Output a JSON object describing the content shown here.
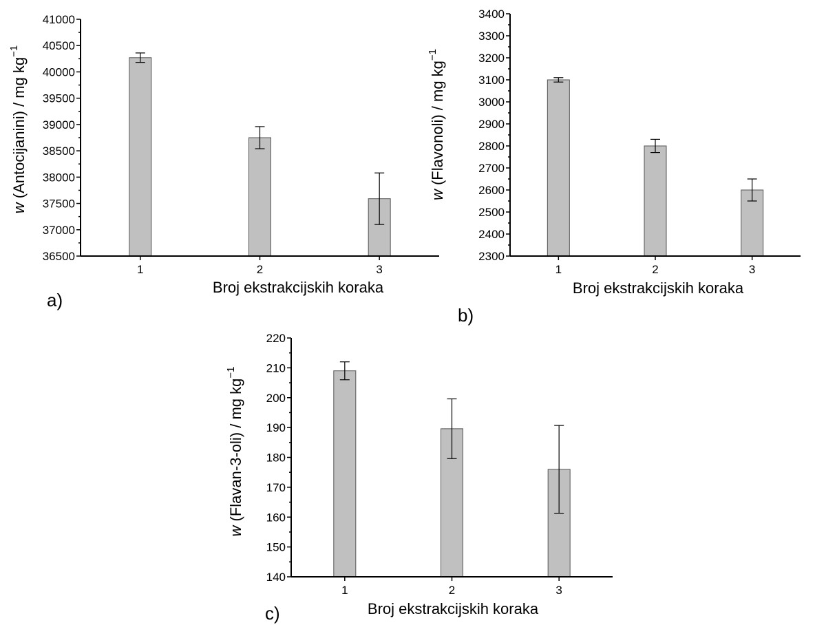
{
  "chart_data": [
    {
      "type": "bar",
      "panel_label": "a)",
      "categories": [
        "1",
        "2",
        "3"
      ],
      "values": [
        40270,
        38750,
        37590
      ],
      "errors": [
        90,
        210,
        490
      ],
      "xlabel": "Broj ekstrakcijskih koraka",
      "ylabel_prefix": "w",
      "ylabel_rest": " (Antocijanini) / mg kg",
      "ylabel_sup": "−1",
      "ylim": [
        36500,
        41000
      ],
      "yticks": [
        36500,
        37000,
        37500,
        38000,
        38500,
        39000,
        39500,
        40000,
        40500,
        41000
      ],
      "bar_color": "#c0c0c0"
    },
    {
      "type": "bar",
      "panel_label": "b)",
      "categories": [
        "1",
        "2",
        "3"
      ],
      "values": [
        3100,
        2800,
        2600
      ],
      "errors": [
        10,
        30,
        50
      ],
      "xlabel": "Broj ekstrakcijskih koraka",
      "ylabel_prefix": "w",
      "ylabel_rest": " (Flavonoli) / mg kg",
      "ylabel_sup": "−1",
      "ylim": [
        2300,
        3400
      ],
      "yticks": [
        2300,
        2400,
        2500,
        2600,
        2700,
        2800,
        2900,
        3000,
        3100,
        3200,
        3300,
        3400
      ],
      "bar_color": "#c0c0c0"
    },
    {
      "type": "bar",
      "panel_label": "c)",
      "categories": [
        "1",
        "2",
        "3"
      ],
      "values": [
        209,
        189.6,
        176
      ],
      "errors": [
        3,
        10,
        14.7
      ],
      "xlabel": "Broj ekstrakcijskih koraka",
      "ylabel_prefix": "w",
      "ylabel_rest": " (Flavan-3-oli) / mg kg",
      "ylabel_sup": "−1",
      "ylim": [
        140,
        220
      ],
      "yticks": [
        140,
        150,
        160,
        170,
        180,
        190,
        200,
        210,
        220
      ],
      "bar_color": "#c0c0c0"
    }
  ]
}
